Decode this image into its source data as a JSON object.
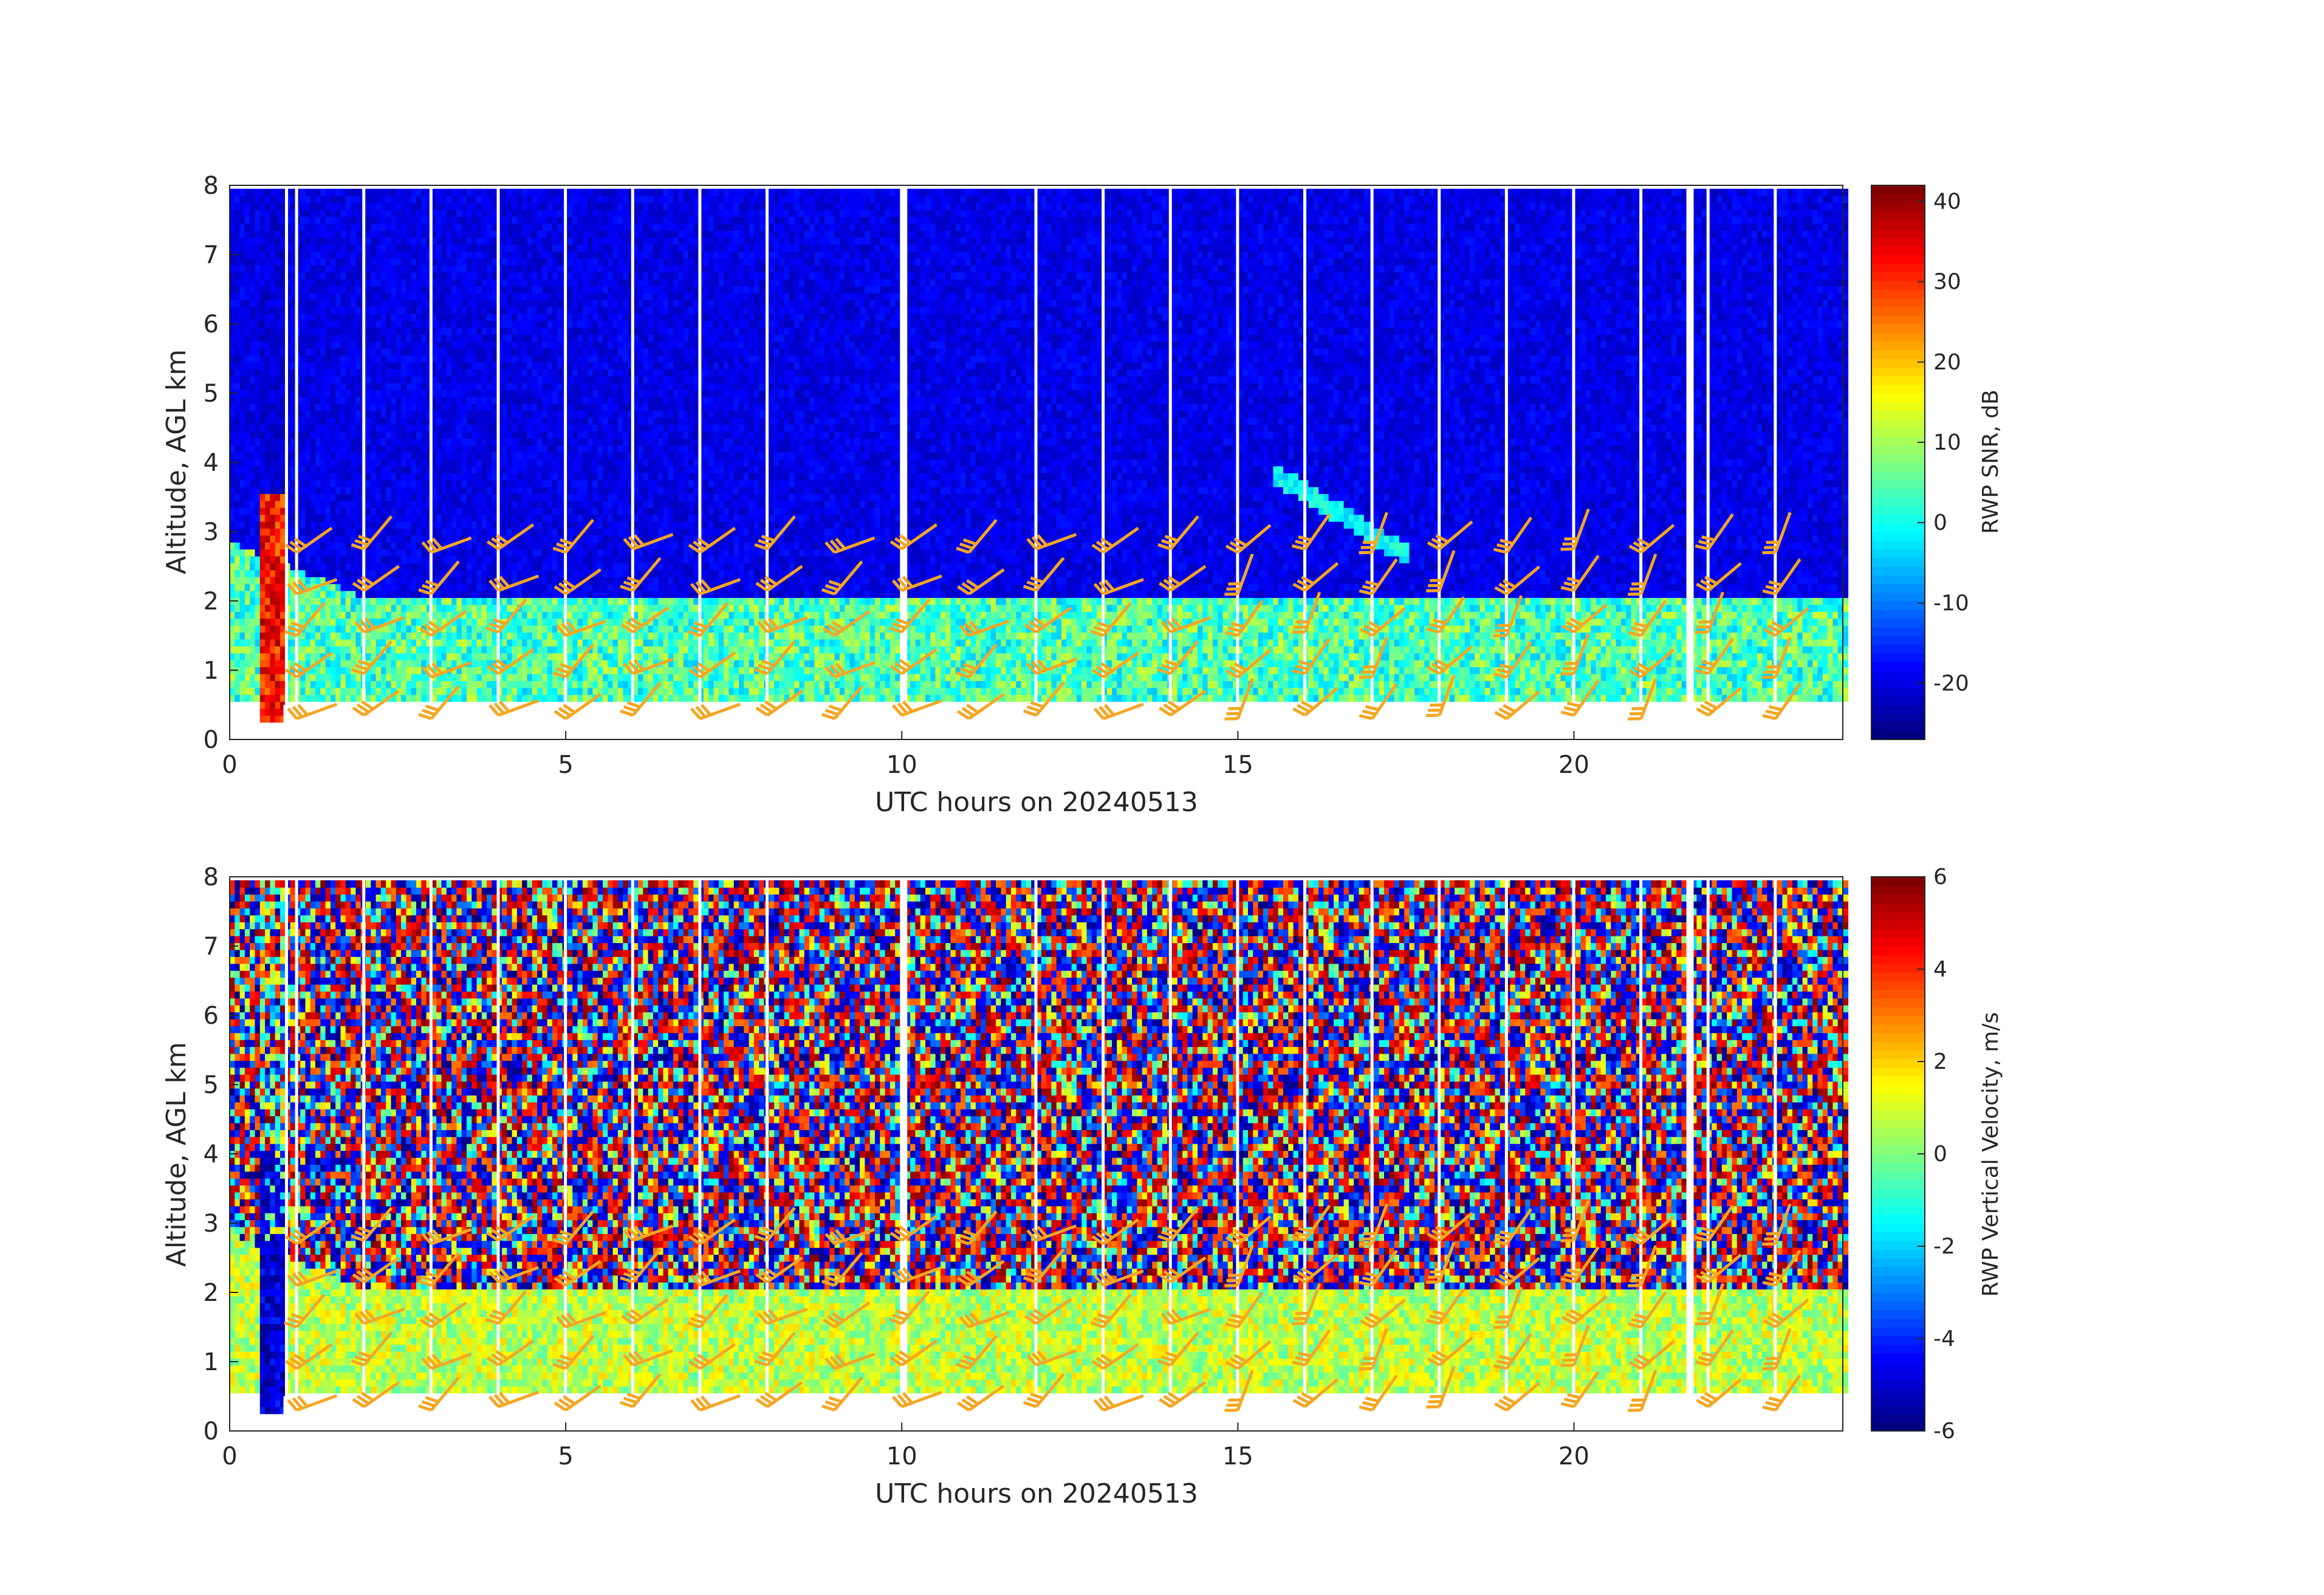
{
  "chart_data": [
    {
      "type": "heatmap",
      "panel": "top",
      "xlabel": "UTC hours on 20240513",
      "ylabel": "Altitude, AGL km",
      "xlim": [
        0,
        24
      ],
      "ylim": [
        0,
        8
      ],
      "xticks": [
        0,
        5,
        10,
        15,
        20
      ],
      "yticks": [
        0,
        1,
        2,
        3,
        4,
        5,
        6,
        7,
        8
      ],
      "colorbar": {
        "label": "RWP SNR, dB",
        "range": [
          -27,
          42
        ],
        "ticks": [
          -20,
          -10,
          0,
          10,
          20,
          30,
          40
        ],
        "colormap": "jet"
      },
      "data_gaps_hours": [
        0.85,
        1.0,
        2.0,
        3.0,
        4.0,
        5.0,
        6.0,
        7.0,
        8.0,
        10.0,
        12.0,
        13.0,
        14.0,
        15.0,
        16.0,
        17.0,
        18.0,
        19.0,
        20.0,
        21.0,
        21.7,
        22.0,
        23.0
      ],
      "field_description_layers": [
        {
          "name": "boundary layer echo",
          "top_km": 2.0,
          "level_db": 5
        },
        {
          "name": "free troposphere noise",
          "top_km": 8.0,
          "level_db": -22
        }
      ],
      "wind_barbs": {
        "color": "#F5A623",
        "times_hours": [
          1,
          2,
          3,
          4,
          5,
          6,
          7,
          8,
          9,
          10,
          11,
          12,
          13,
          14,
          15,
          16,
          17,
          18,
          19,
          20,
          21,
          22,
          23
        ],
        "heights_km": [
          0.4,
          1.0,
          1.6,
          2.2,
          2.8
        ]
      }
    },
    {
      "type": "heatmap",
      "panel": "bottom",
      "xlabel": "UTC hours on 20240513",
      "ylabel": "Altitude, AGL km",
      "xlim": [
        0,
        24
      ],
      "ylim": [
        0,
        8
      ],
      "xticks": [
        0,
        5,
        10,
        15,
        20
      ],
      "yticks": [
        0,
        1,
        2,
        3,
        4,
        5,
        6,
        7,
        8
      ],
      "colorbar": {
        "label": "RWP Vertical Velocity, m/s",
        "range": [
          -6,
          6
        ],
        "ticks": [
          -6,
          -4,
          -2,
          0,
          2,
          4,
          6
        ],
        "colormap": "jet"
      },
      "data_gaps_hours": [
        0.85,
        1.0,
        2.0,
        3.0,
        4.0,
        5.0,
        6.0,
        7.0,
        8.0,
        10.0,
        12.0,
        13.0,
        14.0,
        15.0,
        16.0,
        17.0,
        18.0,
        19.0,
        20.0,
        21.0,
        21.7,
        22.0,
        23.0
      ],
      "field_description_layers": [
        {
          "name": "boundary layer",
          "top_km": 2.0,
          "level_ms": 0.5
        },
        {
          "name": "free troposphere noise",
          "top_km": 8.0,
          "level_ms": "random"
        }
      ],
      "wind_barbs": {
        "color": "#F5A623",
        "times_hours": [
          1,
          2,
          3,
          4,
          5,
          6,
          7,
          8,
          9,
          10,
          11,
          12,
          13,
          14,
          15,
          16,
          17,
          18,
          19,
          20,
          21,
          22,
          23
        ],
        "heights_km": [
          0.4,
          1.0,
          1.6,
          2.2,
          2.8
        ]
      }
    }
  ]
}
